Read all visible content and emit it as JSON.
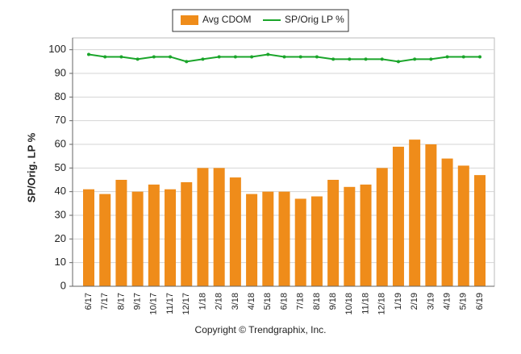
{
  "chart_data": {
    "type": "bar",
    "ylabel": "SP/Orig. LP %",
    "footer": "Copyright © Trendgraphix, Inc.",
    "categories": [
      "6/17",
      "7/17",
      "8/17",
      "9/17",
      "10/17",
      "11/17",
      "12/17",
      "1/18",
      "2/18",
      "3/18",
      "4/18",
      "5/18",
      "6/18",
      "7/18",
      "8/18",
      "9/18",
      "10/18",
      "11/18",
      "12/18",
      "1/19",
      "2/19",
      "3/19",
      "4/19",
      "5/19",
      "6/19"
    ],
    "series": [
      {
        "name": "Avg CDOM",
        "type": "bar",
        "color": "#ef8c1a",
        "values": [
          41,
          39,
          45,
          40,
          43,
          41,
          44,
          50,
          50,
          46,
          39,
          40,
          40,
          37,
          38,
          45,
          42,
          43,
          50,
          59,
          62,
          60,
          54,
          51,
          47
        ]
      },
      {
        "name": "SP/Orig LP %",
        "type": "line",
        "color": "#1aa52a",
        "values": [
          98,
          97,
          97,
          96,
          97,
          97,
          95,
          96,
          97,
          97,
          97,
          98,
          97,
          97,
          97,
          96,
          96,
          96,
          96,
          95,
          96,
          96,
          97,
          97,
          97
        ]
      }
    ],
    "ylim": [
      0,
      105
    ],
    "yticks": [
      0,
      10,
      20,
      30,
      40,
      50,
      60,
      70,
      80,
      90,
      100
    ],
    "grid": true
  }
}
